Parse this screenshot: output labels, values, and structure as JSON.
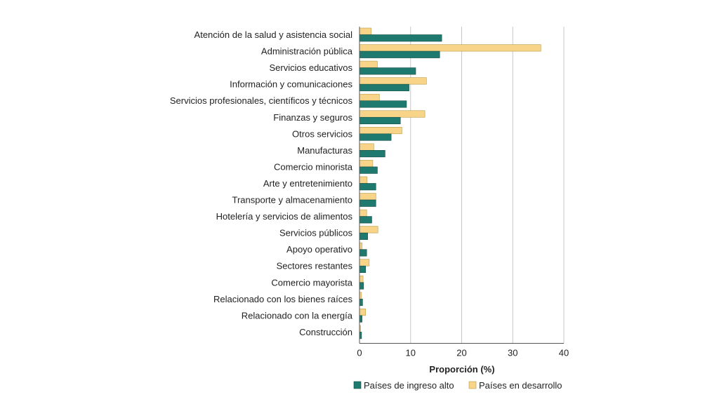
{
  "chart_data": {
    "type": "bar",
    "orientation": "horizontal",
    "categories": [
      "Atención de la salud y asistencia social",
      "Administración pública",
      "Servicios educativos",
      "Información y comunicaciones",
      "Servicios profesionales, científicos y técnicos",
      "Finanzas y seguros",
      "Otros servicios",
      "Manufacturas",
      "Comercio minorista",
      "Arte y entretenimiento",
      "Transporte y almacenamiento",
      "Hotelería y servicios de alimentos",
      "Servicios públicos",
      "Apoyo operativo",
      "Sectores restantes",
      "Comercio mayorista",
      "Relacionado con los bienes raíces",
      "Relacionado con la energía",
      "Construcción"
    ],
    "series": [
      {
        "name": "Países en desarrollo",
        "color": "#f7d488",
        "values": [
          2.3,
          35.5,
          3.5,
          13.1,
          3.9,
          12.8,
          8.3,
          2.8,
          2.6,
          1.5,
          3.2,
          1.4,
          3.6,
          0.5,
          1.9,
          0.7,
          0.4,
          1.2,
          0.2
        ]
      },
      {
        "name": "Países de ingreso alto",
        "color": "#1e7a6e",
        "values": [
          16.1,
          15.7,
          11.0,
          9.7,
          9.2,
          8.0,
          6.2,
          5.0,
          3.5,
          3.2,
          3.2,
          2.4,
          1.6,
          1.4,
          1.2,
          0.8,
          0.6,
          0.5,
          0.4
        ]
      }
    ],
    "xlabel": "Proporción (%)",
    "xlim": [
      0,
      40
    ],
    "xticks": [
      0,
      10,
      20,
      30,
      40
    ],
    "grid": true,
    "legend": {
      "position": "bottom",
      "items": [
        "Países de ingreso alto",
        "Países en desarrollo"
      ]
    }
  }
}
